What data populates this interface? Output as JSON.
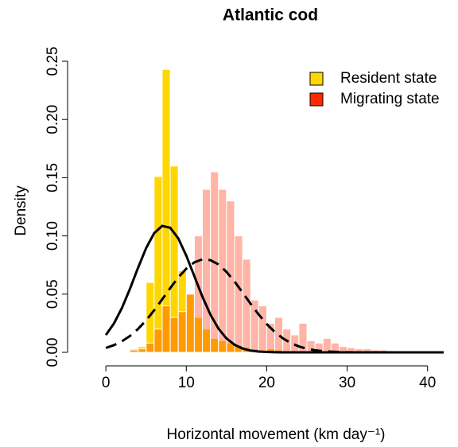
{
  "chart_data": {
    "type": "histogram-density",
    "title": "Atlantic cod",
    "xlabel": "Horizontal movement (km day⁻¹)",
    "ylabel": "Density",
    "xlim": [
      -1.5,
      42.5
    ],
    "ylim": [
      0,
      0.25
    ],
    "xticks": [
      0,
      10,
      20,
      30,
      40
    ],
    "yticks": [
      {
        "value": 0,
        "label": "0.00"
      },
      {
        "value": 0.05,
        "label": "0.05"
      },
      {
        "value": 0.1,
        "label": "0.10"
      },
      {
        "value": 0.15,
        "label": "0.15"
      },
      {
        "value": 0.2,
        "label": "0.20"
      },
      {
        "value": 0.25,
        "label": "0.25"
      }
    ],
    "legend": "top-right",
    "bins": [
      3,
      4,
      5,
      6,
      7,
      8,
      9,
      10,
      11,
      12,
      13,
      14,
      15,
      16,
      17,
      18,
      19,
      20,
      21,
      22,
      23,
      24,
      25,
      26,
      27,
      28,
      29,
      30,
      31,
      32,
      33,
      34,
      35
    ],
    "series": [
      {
        "name": "Resident state",
        "color": "#FFD700",
        "alpha": 1,
        "values": [
          0.003,
          0.005,
          0.06,
          0.151,
          0.243,
          0.16,
          0.07,
          0.05,
          0.03,
          0.02,
          0.012,
          0.01,
          0.008,
          0.006,
          0.004,
          0.003,
          0.002,
          0.003,
          0.002,
          0.001,
          0,
          0,
          0,
          0,
          0,
          0,
          0,
          0,
          0,
          0,
          0,
          0
        ]
      },
      {
        "name": "Migrating state",
        "color": "#FF2A00",
        "alpha": 0.35,
        "values": [
          0.002,
          0.003,
          0.008,
          0.02,
          0.04,
          0.03,
          0.035,
          0.05,
          0.1,
          0.14,
          0.155,
          0.14,
          0.13,
          0.1,
          0.08,
          0.045,
          0.04,
          0.025,
          0.03,
          0.02,
          0.015,
          0.025,
          0.01,
          0.008,
          0.012,
          0.008,
          0.005,
          0.004,
          0.003,
          0.003,
          0.002,
          0.002
        ]
      }
    ],
    "curves": {
      "x": [
        0,
        1,
        2,
        3,
        4,
        5,
        6,
        7,
        8,
        9,
        10,
        11,
        12,
        13,
        14,
        15,
        16,
        17,
        18,
        19,
        20,
        21,
        22,
        23,
        24,
        25,
        26,
        27,
        28,
        29,
        30,
        31,
        32,
        33,
        34,
        35,
        36,
        37,
        38,
        39,
        40,
        41,
        42
      ],
      "lines": [
        {
          "dash": "solid",
          "values": [
            0.0149,
            0.0248,
            0.0382,
            0.0547,
            0.0726,
            0.0895,
            0.1023,
            0.1086,
            0.107,
            0.0979,
            0.083,
            0.0654,
            0.0478,
            0.0324,
            0.0204,
            0.0119,
            0.0065,
            0.0033,
            0.0015,
            0.0007,
            0.0003,
            0.0001,
            0,
            0,
            0,
            0,
            0,
            0,
            0,
            0,
            0,
            0,
            0,
            0,
            0,
            0,
            0,
            0,
            0,
            0,
            0,
            0,
            0
          ]
        },
        {
          "dash": "dashed",
          "values": [
            0.0038,
            0.0062,
            0.0095,
            0.0141,
            0.0201,
            0.0274,
            0.0361,
            0.0455,
            0.0552,
            0.0643,
            0.0719,
            0.0773,
            0.0799,
            0.0792,
            0.0755,
            0.0691,
            0.0608,
            0.0513,
            0.0417,
            0.0325,
            0.0243,
            0.0175,
            0.0121,
            0.008,
            0.0051,
            0.0031,
            0.0018,
            0.001,
            0.0006,
            0.0003,
            0.0001,
            0,
            0,
            0,
            0,
            0,
            0,
            0,
            0,
            0,
            0,
            0,
            0
          ]
        }
      ]
    }
  }
}
